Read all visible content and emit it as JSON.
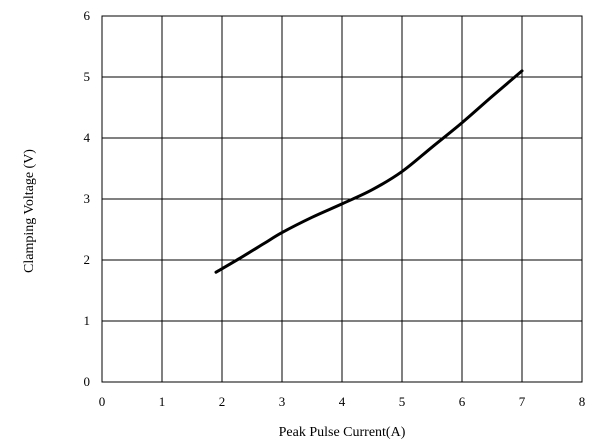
{
  "chart_data": {
    "type": "line",
    "title": "",
    "xlabel": "Peak Pulse Current(A)",
    "ylabel": "Clamping Voltage (V)",
    "xlim": [
      0,
      8
    ],
    "ylim": [
      0,
      6
    ],
    "xticks": [
      "0",
      "1",
      "2",
      "3",
      "4",
      "5",
      "6",
      "7",
      "8"
    ],
    "yticks": [
      "0",
      "1",
      "2",
      "3",
      "4",
      "5",
      "6"
    ],
    "grid": true,
    "legend": "none",
    "line_color": "#000000",
    "series": [
      {
        "x": [
          1.9,
          2.3,
          2.7,
          3.0,
          3.5,
          4.0,
          4.5,
          5.0,
          5.5,
          6.0,
          6.5,
          7.0
        ],
        "y": [
          1.8,
          2.03,
          2.27,
          2.45,
          2.7,
          2.92,
          3.15,
          3.45,
          3.85,
          4.25,
          4.68,
          5.1
        ]
      }
    ]
  }
}
